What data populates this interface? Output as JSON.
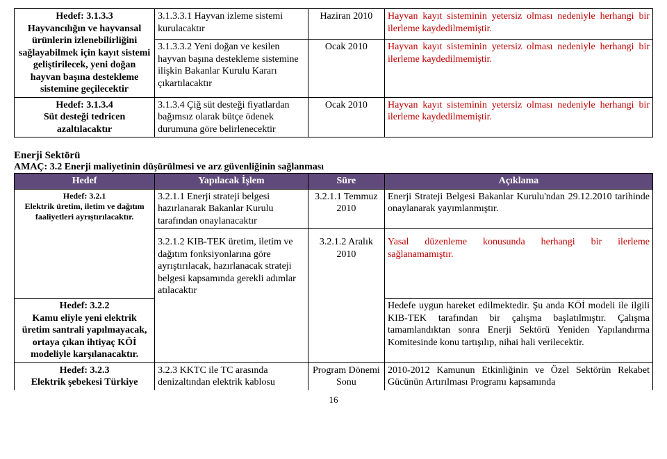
{
  "table1": {
    "col_widths": [
      "22%",
      "24%",
      "12%",
      "42%"
    ],
    "rows": [
      {
        "c1": "Hedef: 3.1.3.3\nHayvancılığın ve hayvansal ürünlerin izlenebilirliğini sağlayabilmek için kayıt sistemi geliştirilecek, yeni doğan hayvan başına destekleme sistemine geçilecektir",
        "c1_bold": true,
        "c1_rowspan": 2,
        "c2": "3.1.3.3.1 Hayvan izleme sistemi kurulacaktır",
        "c3": "Haziran 2010",
        "c4": "Hayvan kayıt sisteminin yetersiz olması nedeniyle herhangi bir ilerleme kaydedilmemiştir."
      },
      {
        "c2": "3.1.3.3.2 Yeni doğan ve kesilen hayvan başına destekleme sistemine ilişkin Bakanlar Kurulu Kararı çıkartılacaktır",
        "c3": "Ocak 2010",
        "c4": "Hayvan kayıt sisteminin yetersiz olması nedeniyle herhangi bir ilerleme kaydedilmemiştir."
      },
      {
        "c1": "Hedef: 3.1.3.4\nSüt desteği tedricen azaltılacaktır",
        "c1_bold": true,
        "c2": "3.1.3.4 Çiğ süt desteği fiyatlardan bağımsız olarak bütçe ödenek durumuna göre belirlenecektir",
        "c3": "Ocak 2010",
        "c4": "Hayvan kayıt sisteminin yetersiz olması nedeniyle herhangi bir ilerleme kaydedilmemiştir."
      }
    ]
  },
  "section2": {
    "title": "Enerji Sektörü",
    "amac": "AMAÇ: 3.2 Enerji maliyetinin düşürülmesi ve arz güvenliğinin sağlanması"
  },
  "table2": {
    "col_widths": [
      "22%",
      "24%",
      "12%",
      "42%"
    ],
    "headers": [
      "Hedef",
      "Yapılacak İşlem",
      "Süre",
      "Açıklama"
    ],
    "rows": [
      {
        "c1": "Hedef: 3.2.1\nElektrik üretim, iletim ve dağıtım faaliyetleri ayrıştırılacaktır.",
        "c1_bold": true,
        "c1_small": true,
        "c2": "3.2.1.1 Enerji strateji belgesi hazırlanarak Bakanlar Kurulu tarafından onaylanacaktır",
        "c3": "3.2.1.1 Temmuz 2010",
        "c4": "Enerji Strateji Belgesi Bakanlar Kurulu'ndan 29.12.2010 tarihinde onaylanarak yayımlanmıştır."
      },
      {
        "c1": "",
        "c2": "3.2.1.2 KIB-TEK üretim, iletim ve dağıtım fonksiyonlarına göre ayrıştırılacak, hazırlanacak strateji belgesi kapsamında gerekli adımlar atılacaktır",
        "c3": "3.2.1.2 Aralık 2010",
        "c4": "Yasal düzenleme konusunda herhangi bir ilerleme sağlanamamıştır.",
        "c4_red": true
      },
      {
        "c1": "Hedef: 3.2.2\nKamu eliyle yeni elektrik üretim santrali yapılmayacak, ortaya çıkan ihtiyaç KÖİ modeliyle karşılanacaktır.",
        "c1_bold": true,
        "c2": "",
        "c3": "",
        "c4": "Hedefe uygun hareket edilmektedir. Şu anda KÖİ modeli ile ilgili KIB-TEK tarafından bir çalışma başlatılmıştır. Çalışma tamamlandıktan sonra Enerji Sektörü Yeniden Yapılandırma Komitesinde konu tartışılıp, nihai hali verilecektir."
      },
      {
        "c1": "Hedef: 3.2.3\nElektrik şebekesi Türkiye",
        "c1_bold": true,
        "c2": "3.2.3 KKTC ile TC arasında denizaltından elektrik kablosu",
        "c3": "Program Dönemi Sonu",
        "c4": "2010-2012 Kamunun Etkinliğinin ve Özel Sektörün Rekabet Gücünün Artırılması Programı kapsamında",
        "open_bottom": true
      }
    ]
  },
  "page_number": "16"
}
